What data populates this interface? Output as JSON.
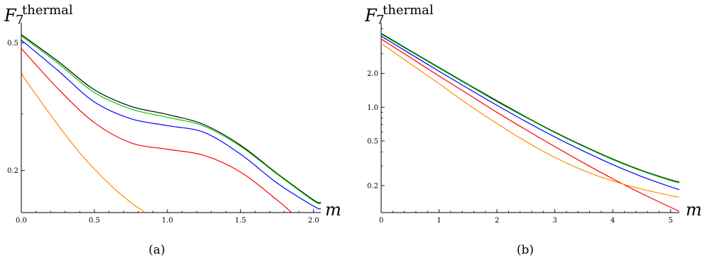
{
  "chart_data": [
    {
      "type": "line",
      "panel_label": "(a)",
      "ylabel_main": "F",
      "ylabel_sub": "7",
      "ylabel_sup": "thermal",
      "xlabel": "m",
      "yscale": "log",
      "xlim": [
        0,
        2.05
      ],
      "ylim": [
        0.148,
        0.56
      ],
      "xticks": [
        0.0,
        0.5,
        1.0,
        1.5,
        2.0
      ],
      "xtick_labels": [
        "0.0",
        "0.5",
        "1.0",
        "1.5",
        "2.0"
      ],
      "yticks": [
        0.2,
        0.5
      ],
      "ytick_labels": [
        "0.2",
        "0.5"
      ],
      "series": [
        {
          "color": "#000000",
          "x": [
            0,
            0.25,
            0.5,
            0.75,
            1.0,
            1.25,
            1.5,
            1.75,
            2.0,
            2.05
          ],
          "y": [
            0.53,
            0.438,
            0.357,
            0.317,
            0.299,
            0.278,
            0.24,
            0.196,
            0.162,
            0.159
          ]
        },
        {
          "color": "#00cc00",
          "x": [
            0,
            0.25,
            0.5,
            0.75,
            1.0,
            1.25,
            1.5,
            1.75,
            2.0,
            2.05
          ],
          "y": [
            0.525,
            0.432,
            0.35,
            0.311,
            0.293,
            0.275,
            0.238,
            0.195,
            0.161,
            0.158
          ]
        },
        {
          "color": "#0000ff",
          "x": [
            0,
            0.25,
            0.5,
            0.75,
            1.0,
            1.25,
            1.5,
            1.75,
            2.0,
            2.05
          ],
          "y": [
            0.51,
            0.41,
            0.327,
            0.29,
            0.276,
            0.263,
            0.225,
            0.183,
            0.155,
            0.152
          ]
        },
        {
          "color": "#ff0000",
          "x": [
            0,
            0.25,
            0.5,
            0.75,
            1.0,
            1.25,
            1.5,
            1.75,
            1.85
          ],
          "y": [
            0.48,
            0.36,
            0.282,
            0.244,
            0.233,
            0.223,
            0.198,
            0.162,
            0.148
          ]
        },
        {
          "color": "#ff8c00",
          "x": [
            0,
            0.2,
            0.4,
            0.6,
            0.75,
            0.85
          ],
          "y": [
            0.4,
            0.298,
            0.227,
            0.182,
            0.159,
            0.148
          ]
        }
      ]
    },
    {
      "type": "line",
      "panel_label": "(b)",
      "ylabel_main": "F",
      "ylabel_sub": "7",
      "ylabel_sup": "thermal",
      "xlabel": "m",
      "yscale": "log",
      "xlim": [
        0,
        5.15
      ],
      "ylim": [
        0.115,
        5.2
      ],
      "xticks": [
        0,
        1,
        2,
        3,
        4,
        5
      ],
      "xtick_labels": [
        "0",
        "1",
        "2",
        "3",
        "4",
        "5"
      ],
      "yticks": [
        0.2,
        0.5,
        1.0,
        2.0
      ],
      "ytick_labels": [
        "0.2",
        "0.5",
        "1.0",
        "2.0"
      ],
      "series": [
        {
          "color": "#000000",
          "x": [
            0,
            0.5,
            1,
            1.5,
            2,
            2.5,
            3,
            3.5,
            4,
            4.5,
            5,
            5.15
          ],
          "y": [
            4.55,
            3.2,
            2.26,
            1.6,
            1.14,
            0.82,
            0.6,
            0.45,
            0.345,
            0.273,
            0.225,
            0.215
          ]
        },
        {
          "color": "#00cc00",
          "x": [
            0,
            0.5,
            1,
            1.5,
            2,
            2.5,
            3,
            3.5,
            4,
            4.5,
            5,
            5.15
          ],
          "y": [
            4.48,
            3.16,
            2.23,
            1.58,
            1.12,
            0.81,
            0.593,
            0.445,
            0.341,
            0.27,
            0.222,
            0.212
          ]
        },
        {
          "color": "#0000ff",
          "x": [
            0,
            0.5,
            1,
            1.5,
            2,
            2.5,
            3,
            3.5,
            4,
            4.5,
            5,
            5.15
          ],
          "y": [
            4.3,
            3.0,
            2.09,
            1.47,
            1.04,
            0.745,
            0.543,
            0.405,
            0.308,
            0.241,
            0.195,
            0.184
          ]
        },
        {
          "color": "#ff0000",
          "x": [
            0,
            0.5,
            1,
            1.5,
            2,
            2.5,
            3,
            3.5,
            4,
            4.5,
            5,
            5.15
          ],
          "y": [
            4.05,
            2.78,
            1.9,
            1.31,
            0.9,
            0.63,
            0.445,
            0.318,
            0.23,
            0.17,
            0.128,
            0.118
          ]
        },
        {
          "color": "#ff8c00",
          "x": [
            0,
            0.5,
            1,
            1.5,
            2,
            2.5,
            3,
            3.5,
            4,
            4.5,
            5,
            5.15
          ],
          "y": [
            3.7,
            2.45,
            1.62,
            1.06,
            0.715,
            0.495,
            0.357,
            0.272,
            0.22,
            0.186,
            0.163,
            0.158
          ]
        }
      ]
    }
  ]
}
